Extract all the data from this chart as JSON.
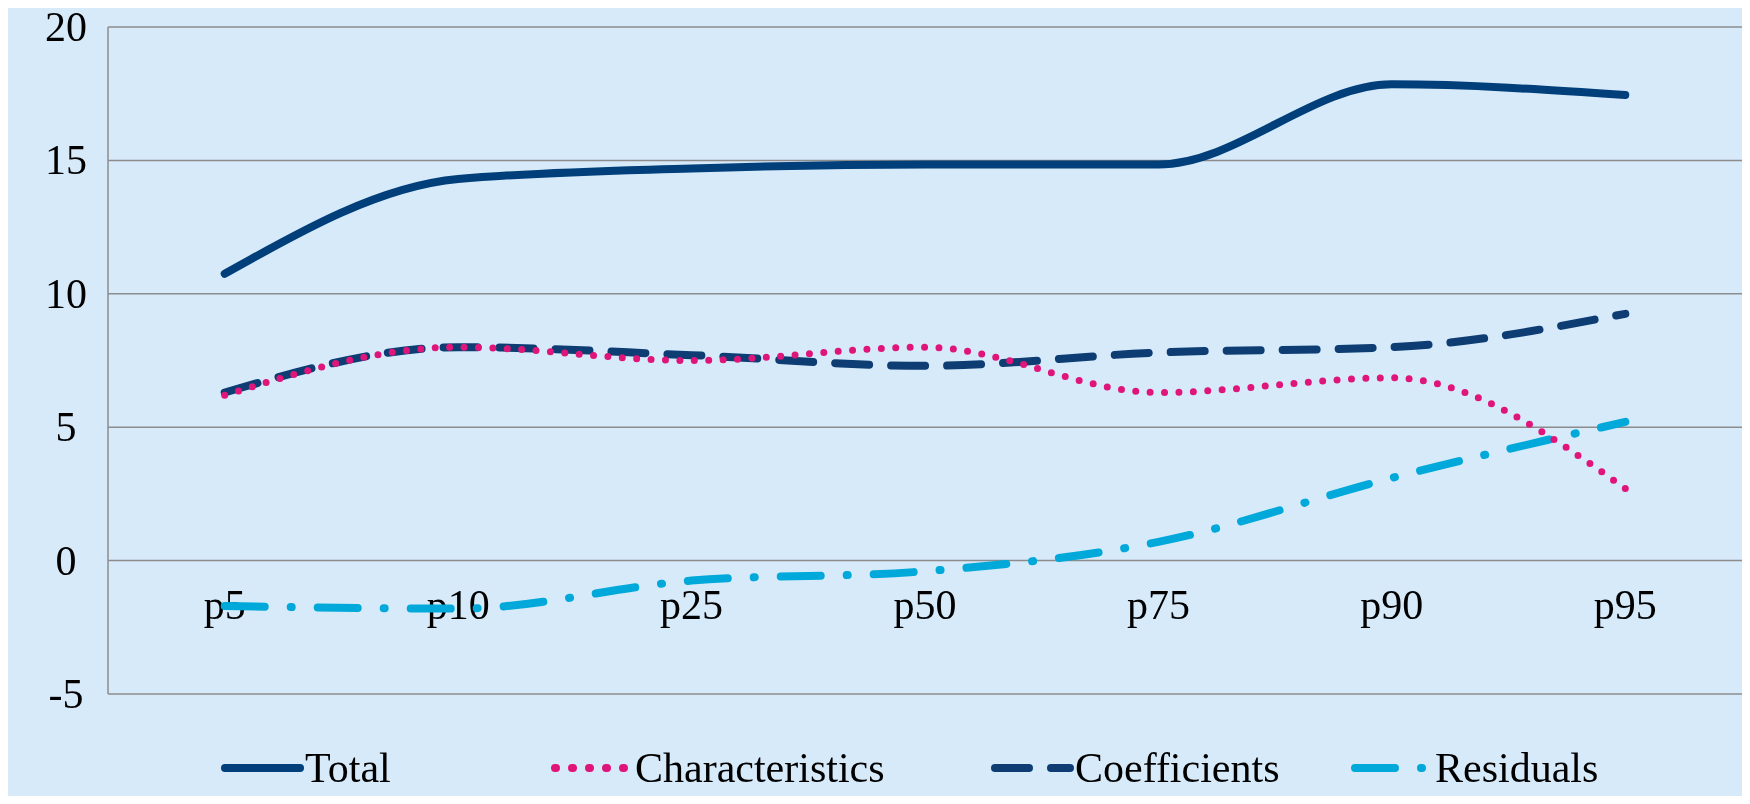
{
  "chart_data": {
    "type": "line",
    "categories": [
      "p5",
      "p10",
      "p25",
      "p50",
      "p75",
      "p90",
      "p95"
    ],
    "series": [
      {
        "name": "Total",
        "color": "#003f7a",
        "line_style": "solid",
        "values": [
          10.75,
          14.3,
          14.7,
          14.85,
          14.85,
          17.85,
          17.45
        ]
      },
      {
        "name": "Characteristics",
        "color": "#e0157a",
        "line_style": "dotted",
        "values": [
          6.2,
          8.0,
          7.5,
          8.0,
          6.3,
          6.85,
          2.7
        ]
      },
      {
        "name": "Coefficients",
        "color": "#0d3d73",
        "line_style": "dashed",
        "values": [
          6.3,
          8.0,
          7.7,
          7.3,
          7.8,
          8.0,
          9.25
        ]
      },
      {
        "name": "Residuals",
        "color": "#00a9d9",
        "line_style": "dashdot",
        "values": [
          -1.7,
          -1.8,
          -0.75,
          -0.4,
          0.7,
          3.1,
          5.2
        ]
      }
    ],
    "ylim": [
      -5,
      20
    ],
    "yticks": [
      -5,
      0,
      5,
      10,
      15,
      20
    ],
    "grid": "y",
    "legend": "bottom"
  }
}
